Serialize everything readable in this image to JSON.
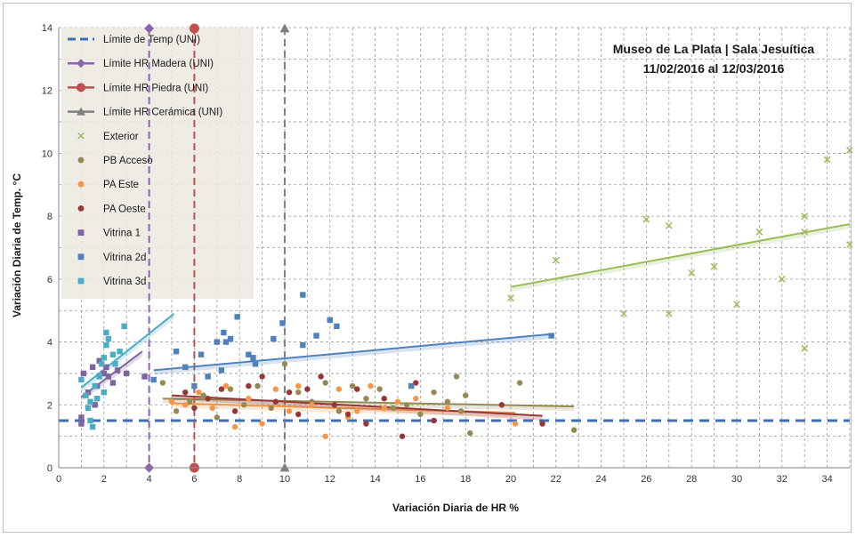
{
  "chart_data": {
    "type": "scatter",
    "title_lines": [
      "Museo de La Plata | Sala Jesuítica",
      "11/02/2016 al 12/03/2016"
    ],
    "xlabel": "Variación Diaria de HR %",
    "ylabel": "Variación Diaria de Temp. °C",
    "xlim": [
      0,
      35
    ],
    "ylim": [
      0,
      14
    ],
    "x_ticks": [
      0,
      2,
      4,
      6,
      8,
      10,
      12,
      14,
      16,
      18,
      20,
      22,
      24,
      26,
      28,
      30,
      32,
      34
    ],
    "y_ticks": [
      0,
      2,
      4,
      6,
      8,
      10,
      12,
      14
    ],
    "grid": "dashed",
    "legend_position": "top-left",
    "limit_lines": [
      {
        "name": "Límite de Temp (UNI)",
        "orientation": "horizontal",
        "value": 1.5,
        "color": "#3f6fb0",
        "marker": "none"
      },
      {
        "name": "Límite HR Madera (UNI)",
        "orientation": "vertical",
        "value": 4,
        "color": "#8a64b0",
        "marker": "diamond"
      },
      {
        "name": "Límite HR Piedra (UNI)",
        "orientation": "vertical",
        "value": 6,
        "color": "#c0504d",
        "marker": "circle"
      },
      {
        "name": "Límite HR Cerámica (UNI)",
        "orientation": "vertical",
        "value": 10,
        "color": "#808080",
        "marker": "triangle"
      }
    ],
    "series": [
      {
        "name": "Exterior",
        "marker": "x",
        "color": "#9bbb59",
        "points": [
          [
            20,
            5.4
          ],
          [
            22,
            6.6
          ],
          [
            25,
            4.9
          ],
          [
            26,
            7.9
          ],
          [
            27,
            7.7
          ],
          [
            27,
            4.9
          ],
          [
            28,
            6.2
          ],
          [
            29,
            6.4
          ],
          [
            30,
            5.2
          ],
          [
            31,
            7.5
          ],
          [
            32,
            6.0
          ],
          [
            33,
            8.0
          ],
          [
            33,
            7.5
          ],
          [
            33,
            3.8
          ],
          [
            34,
            9.8
          ],
          [
            35,
            10.1
          ],
          [
            35,
            7.1
          ]
        ],
        "trend": [
          [
            20,
            5.75
          ],
          [
            35,
            7.75
          ]
        ]
      },
      {
        "name": "PB Acceso",
        "marker": "circle",
        "color": "#948a54",
        "points": [
          [
            4.6,
            2.7
          ],
          [
            5.2,
            1.8
          ],
          [
            5.8,
            2.1
          ],
          [
            6.4,
            2.3
          ],
          [
            7.0,
            1.6
          ],
          [
            7.6,
            2.5
          ],
          [
            8.2,
            2.0
          ],
          [
            8.8,
            2.6
          ],
          [
            9.4,
            1.9
          ],
          [
            10.0,
            3.3
          ],
          [
            10.6,
            2.4
          ],
          [
            11.2,
            2.1
          ],
          [
            11.8,
            2.7
          ],
          [
            12.4,
            1.8
          ],
          [
            13.0,
            2.6
          ],
          [
            13.6,
            2.2
          ],
          [
            14.2,
            2.5
          ],
          [
            14.8,
            1.9
          ],
          [
            15.4,
            2.0
          ],
          [
            16.0,
            1.7
          ],
          [
            16.6,
            2.4
          ],
          [
            17.2,
            2.1
          ],
          [
            17.6,
            2.9
          ],
          [
            17.8,
            1.8
          ],
          [
            18.0,
            2.3
          ],
          [
            18.2,
            1.1
          ],
          [
            20.4,
            2.7
          ],
          [
            22.8,
            1.2
          ]
        ],
        "trend": [
          [
            4.6,
            2.2
          ],
          [
            22.8,
            1.95
          ]
        ]
      },
      {
        "name": "PA Este",
        "marker": "circle",
        "color": "#f79646",
        "points": [
          [
            5.0,
            2.1
          ],
          [
            5.6,
            2.0
          ],
          [
            6.2,
            2.4
          ],
          [
            6.8,
            1.9
          ],
          [
            7.4,
            2.6
          ],
          [
            7.8,
            1.3
          ],
          [
            8.4,
            2.2
          ],
          [
            9.0,
            1.4
          ],
          [
            9.6,
            2.5
          ],
          [
            10.2,
            1.8
          ],
          [
            10.6,
            2.6
          ],
          [
            11.2,
            2.0
          ],
          [
            11.8,
            1.0
          ],
          [
            12.4,
            2.5
          ],
          [
            12.8,
            1.6
          ],
          [
            13.2,
            1.8
          ],
          [
            13.8,
            2.6
          ],
          [
            14.4,
            1.9
          ],
          [
            15.0,
            2.1
          ],
          [
            15.8,
            2.2
          ],
          [
            17.2,
            1.9
          ],
          [
            20.2,
            1.4
          ]
        ],
        "trend": [
          [
            5.0,
            2.05
          ],
          [
            20.2,
            1.75
          ]
        ]
      },
      {
        "name": "PA Oeste",
        "marker": "circle",
        "color": "#953735",
        "points": [
          [
            5.6,
            2.4
          ],
          [
            6.0,
            1.9
          ],
          [
            6.6,
            2.2
          ],
          [
            7.2,
            2.5
          ],
          [
            7.8,
            1.8
          ],
          [
            8.4,
            2.6
          ],
          [
            9.0,
            2.9
          ],
          [
            9.6,
            2.1
          ],
          [
            10.2,
            2.4
          ],
          [
            10.6,
            1.7
          ],
          [
            11.0,
            2.5
          ],
          [
            11.6,
            2.9
          ],
          [
            12.2,
            2.0
          ],
          [
            12.8,
            1.7
          ],
          [
            13.2,
            2.5
          ],
          [
            13.6,
            1.4
          ],
          [
            14.4,
            2.2
          ],
          [
            15.2,
            1.0
          ],
          [
            15.8,
            2.7
          ],
          [
            16.6,
            1.5
          ],
          [
            19.6,
            2.0
          ],
          [
            21.4,
            1.4
          ]
        ],
        "trend": [
          [
            5.0,
            2.3
          ],
          [
            21.4,
            1.65
          ]
        ]
      },
      {
        "name": "Vitrina 1",
        "marker": "square",
        "color": "#8064a2",
        "points": [
          [
            1.0,
            1.4
          ],
          [
            1.0,
            1.6
          ],
          [
            1.1,
            3.0
          ],
          [
            1.3,
            2.4
          ],
          [
            1.5,
            3.2
          ],
          [
            1.6,
            2.0
          ],
          [
            1.7,
            2.6
          ],
          [
            1.8,
            3.4
          ],
          [
            2.0,
            3.0
          ],
          [
            2.1,
            3.2
          ],
          [
            2.2,
            2.9
          ],
          [
            2.4,
            2.7
          ],
          [
            2.6,
            3.1
          ],
          [
            3.0,
            3.0
          ],
          [
            3.8,
            2.9
          ]
        ],
        "trend": [
          [
            1.0,
            2.25
          ],
          [
            3.7,
            3.7
          ]
        ]
      },
      {
        "name": "Vitrina 2d",
        "marker": "square",
        "color": "#4f81bd",
        "points": [
          [
            4.2,
            2.8
          ],
          [
            5.2,
            3.7
          ],
          [
            5.6,
            3.2
          ],
          [
            6.0,
            2.6
          ],
          [
            6.3,
            3.6
          ],
          [
            6.6,
            2.9
          ],
          [
            7.0,
            4.0
          ],
          [
            7.2,
            3.1
          ],
          [
            7.3,
            4.3
          ],
          [
            7.4,
            4.0
          ],
          [
            7.6,
            4.1
          ],
          [
            7.9,
            4.8
          ],
          [
            8.4,
            3.6
          ],
          [
            8.6,
            3.5
          ],
          [
            8.7,
            3.3
          ],
          [
            9.5,
            4.1
          ],
          [
            9.9,
            4.6
          ],
          [
            10.8,
            5.5
          ],
          [
            10.8,
            3.9
          ],
          [
            11.4,
            4.2
          ],
          [
            12.0,
            4.7
          ],
          [
            12.3,
            4.5
          ],
          [
            15.6,
            2.6
          ],
          [
            21.8,
            4.2
          ]
        ],
        "trend": [
          [
            4.2,
            3.1
          ],
          [
            21.8,
            4.25
          ]
        ]
      },
      {
        "name": "Vitrina 3d",
        "marker": "square",
        "color": "#4bacc6",
        "points": [
          [
            1.0,
            2.8
          ],
          [
            1.2,
            2.3
          ],
          [
            1.3,
            1.9
          ],
          [
            1.4,
            2.1
          ],
          [
            1.4,
            1.5
          ],
          [
            1.5,
            1.3
          ],
          [
            1.6,
            2.6
          ],
          [
            1.7,
            2.2
          ],
          [
            1.8,
            2.9
          ],
          [
            1.9,
            3.3
          ],
          [
            2.0,
            3.5
          ],
          [
            2.0,
            2.4
          ],
          [
            2.1,
            3.9
          ],
          [
            2.1,
            4.3
          ],
          [
            2.2,
            4.1
          ],
          [
            2.4,
            3.6
          ],
          [
            2.5,
            3.3
          ],
          [
            2.7,
            3.7
          ],
          [
            2.9,
            4.5
          ]
        ],
        "trend": [
          [
            1.0,
            2.55
          ],
          [
            5.1,
            4.9
          ]
        ]
      }
    ]
  },
  "axis_tick_labels_x": [
    "0",
    "2",
    "4",
    "6",
    "8",
    "10",
    "12",
    "14",
    "16",
    "18",
    "20",
    "22",
    "24",
    "26",
    "28",
    "30",
    "32",
    "34"
  ],
  "axis_tick_labels_y": [
    "0",
    "2",
    "4",
    "6",
    "8",
    "10",
    "12",
    "14"
  ]
}
